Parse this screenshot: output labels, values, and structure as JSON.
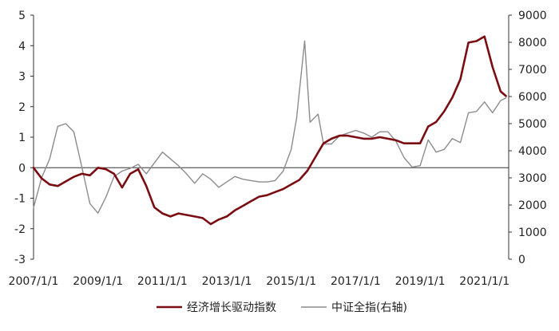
{
  "chart_data": {
    "type": "line",
    "title": "",
    "x_ticks": [
      "2007/1/1",
      "2009/1/1",
      "2011/1/1",
      "2013/1/1",
      "2015/1/1",
      "2017/1/1",
      "2019/1/1",
      "2021/1/1"
    ],
    "y_left": {
      "range": [
        -3,
        5
      ],
      "ticks": [
        "5",
        "4",
        "3",
        "2",
        "1",
        "0",
        "-1",
        "-2",
        "-3"
      ]
    },
    "y_right": {
      "range": [
        0,
        9000
      ],
      "ticks": [
        "9000",
        "8000",
        "7000",
        "6000",
        "5000",
        "4000",
        "3000",
        "2000",
        "1000",
        "0"
      ]
    },
    "legend_position": "bottom-center",
    "grid": false,
    "series": [
      {
        "name": "经济增长驱动指数",
        "axis": "left",
        "color": "#7b0c11",
        "points": [
          [
            "2007-01",
            0.0
          ],
          [
            "2007-04",
            -0.35
          ],
          [
            "2007-07",
            -0.55
          ],
          [
            "2007-10",
            -0.6
          ],
          [
            "2008-01",
            -0.45
          ],
          [
            "2008-04",
            -0.3
          ],
          [
            "2008-07",
            -0.2
          ],
          [
            "2008-10",
            -0.25
          ],
          [
            "2009-01",
            0.0
          ],
          [
            "2009-04",
            -0.05
          ],
          [
            "2009-07",
            -0.2
          ],
          [
            "2009-10",
            -0.65
          ],
          [
            "2010-01",
            -0.2
          ],
          [
            "2010-04",
            -0.05
          ],
          [
            "2010-07",
            -0.6
          ],
          [
            "2010-10",
            -1.3
          ],
          [
            "2011-01",
            -1.5
          ],
          [
            "2011-04",
            -1.6
          ],
          [
            "2011-07",
            -1.5
          ],
          [
            "2011-10",
            -1.55
          ],
          [
            "2012-01",
            -1.6
          ],
          [
            "2012-04",
            -1.65
          ],
          [
            "2012-07",
            -1.85
          ],
          [
            "2012-10",
            -1.7
          ],
          [
            "2013-01",
            -1.6
          ],
          [
            "2013-04",
            -1.4
          ],
          [
            "2013-07",
            -1.25
          ],
          [
            "2013-10",
            -1.1
          ],
          [
            "2014-01",
            -0.95
          ],
          [
            "2014-04",
            -0.9
          ],
          [
            "2014-07",
            -0.8
          ],
          [
            "2014-10",
            -0.7
          ],
          [
            "2015-01",
            -0.55
          ],
          [
            "2015-04",
            -0.4
          ],
          [
            "2015-07",
            -0.1
          ],
          [
            "2015-10",
            0.35
          ],
          [
            "2016-01",
            0.8
          ],
          [
            "2016-04",
            0.95
          ],
          [
            "2016-07",
            1.05
          ],
          [
            "2016-10",
            1.05
          ],
          [
            "2017-01",
            1.0
          ],
          [
            "2017-04",
            0.95
          ],
          [
            "2017-07",
            0.95
          ],
          [
            "2017-10",
            1.0
          ],
          [
            "2018-01",
            0.95
          ],
          [
            "2018-04",
            0.9
          ],
          [
            "2018-07",
            0.8
          ],
          [
            "2018-10",
            0.8
          ],
          [
            "2019-01",
            0.8
          ],
          [
            "2019-04",
            1.35
          ],
          [
            "2019-07",
            1.5
          ],
          [
            "2019-10",
            1.85
          ],
          [
            "2020-01",
            2.3
          ],
          [
            "2020-04",
            2.9
          ],
          [
            "2020-07",
            4.1
          ],
          [
            "2020-10",
            4.15
          ],
          [
            "2021-01",
            4.3
          ],
          [
            "2021-04",
            3.3
          ],
          [
            "2021-07",
            2.5
          ],
          [
            "2021-09",
            2.35
          ]
        ]
      },
      {
        "name": "中证全指(右轴)",
        "axis": "right",
        "color": "#8c8c8c",
        "points": [
          [
            "2007-01",
            1900
          ],
          [
            "2007-04",
            3000
          ],
          [
            "2007-07",
            3700
          ],
          [
            "2007-10",
            4900
          ],
          [
            "2008-01",
            5000
          ],
          [
            "2008-04",
            4700
          ],
          [
            "2008-07",
            3400
          ],
          [
            "2008-10",
            2050
          ],
          [
            "2009-01",
            1700
          ],
          [
            "2009-04",
            2300
          ],
          [
            "2009-07",
            3050
          ],
          [
            "2009-10",
            3250
          ],
          [
            "2010-01",
            3350
          ],
          [
            "2010-04",
            3500
          ],
          [
            "2010-07",
            3150
          ],
          [
            "2010-10",
            3550
          ],
          [
            "2011-01",
            3950
          ],
          [
            "2011-04",
            3700
          ],
          [
            "2011-07",
            3450
          ],
          [
            "2011-10",
            3150
          ],
          [
            "2012-01",
            2800
          ],
          [
            "2012-04",
            3150
          ],
          [
            "2012-07",
            2950
          ],
          [
            "2012-10",
            2650
          ],
          [
            "2013-01",
            2850
          ],
          [
            "2013-04",
            3050
          ],
          [
            "2013-07",
            2950
          ],
          [
            "2013-10",
            2900
          ],
          [
            "2014-01",
            2850
          ],
          [
            "2014-04",
            2850
          ],
          [
            "2014-07",
            2900
          ],
          [
            "2014-10",
            3250
          ],
          [
            "2015-01",
            4050
          ],
          [
            "2015-03",
            5200
          ],
          [
            "2015-06",
            8050
          ],
          [
            "2015-08",
            5050
          ],
          [
            "2015-11",
            5350
          ],
          [
            "2016-01",
            4250
          ],
          [
            "2016-04",
            4250
          ],
          [
            "2016-07",
            4550
          ],
          [
            "2016-10",
            4650
          ],
          [
            "2017-01",
            4750
          ],
          [
            "2017-04",
            4650
          ],
          [
            "2017-07",
            4500
          ],
          [
            "2017-10",
            4700
          ],
          [
            "2018-01",
            4700
          ],
          [
            "2018-04",
            4350
          ],
          [
            "2018-07",
            3750
          ],
          [
            "2018-10",
            3400
          ],
          [
            "2019-01",
            3450
          ],
          [
            "2019-04",
            4400
          ],
          [
            "2019-07",
            3950
          ],
          [
            "2019-10",
            4050
          ],
          [
            "2020-01",
            4450
          ],
          [
            "2020-04",
            4300
          ],
          [
            "2020-07",
            5400
          ],
          [
            "2020-10",
            5450
          ],
          [
            "2021-01",
            5800
          ],
          [
            "2021-04",
            5400
          ],
          [
            "2021-07",
            5850
          ],
          [
            "2021-09",
            5950
          ]
        ]
      }
    ]
  }
}
